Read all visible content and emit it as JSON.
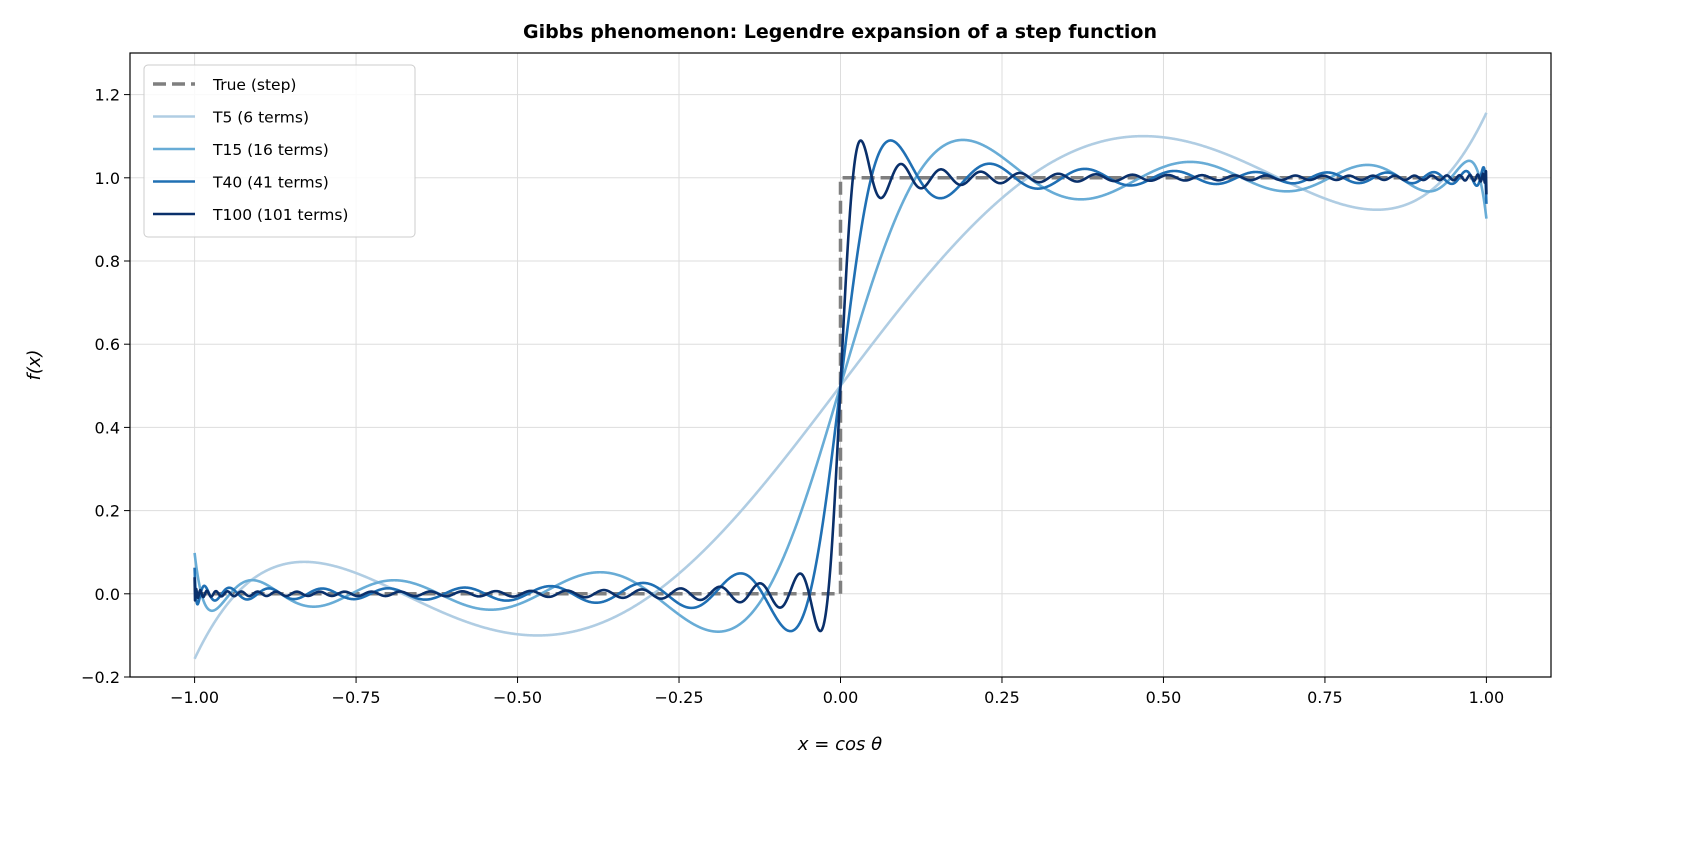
{
  "chart_data": {
    "type": "line",
    "title": "Gibbs phenomenon: Legendre expansion of a step function",
    "xlabel": "x = cos θ",
    "ylabel": "f(x)",
    "xlim": [
      -1.1,
      1.1
    ],
    "ylim": [
      -0.2,
      1.3
    ],
    "grid": true,
    "legend_position": "top-left",
    "xticks": [
      -1.0,
      -0.75,
      -0.5,
      -0.25,
      0.0,
      0.25,
      0.5,
      0.75,
      1.0
    ],
    "xtick_labels": [
      "−1.00",
      "−0.75",
      "−0.50",
      "−0.25",
      "0.00",
      "0.25",
      "0.50",
      "0.75",
      "1.00"
    ],
    "yticks": [
      -0.2,
      0.0,
      0.2,
      0.4,
      0.6,
      0.8,
      1.0,
      1.2
    ],
    "ytick_labels": [
      "−0.2",
      "0.0",
      "0.2",
      "0.4",
      "0.6",
      "0.8",
      "1.0",
      "1.2"
    ],
    "true_function": {
      "name": "True (step)",
      "x": [
        -1,
        0,
        0,
        1
      ],
      "y": [
        0,
        0,
        1,
        1
      ],
      "color": "#7f7f7f",
      "style": "dashed"
    },
    "series": [
      {
        "name": "T5 (6 terms)",
        "degree": 5,
        "color": "#b0cde3"
      },
      {
        "name": "T15 (16 terms)",
        "degree": 15,
        "color": "#68acd6"
      },
      {
        "name": "T40 (41 terms)",
        "degree": 40,
        "color": "#2070b4"
      },
      {
        "name": "T100 (101 terms)",
        "degree": 100,
        "color": "#0a306b"
      }
    ]
  }
}
